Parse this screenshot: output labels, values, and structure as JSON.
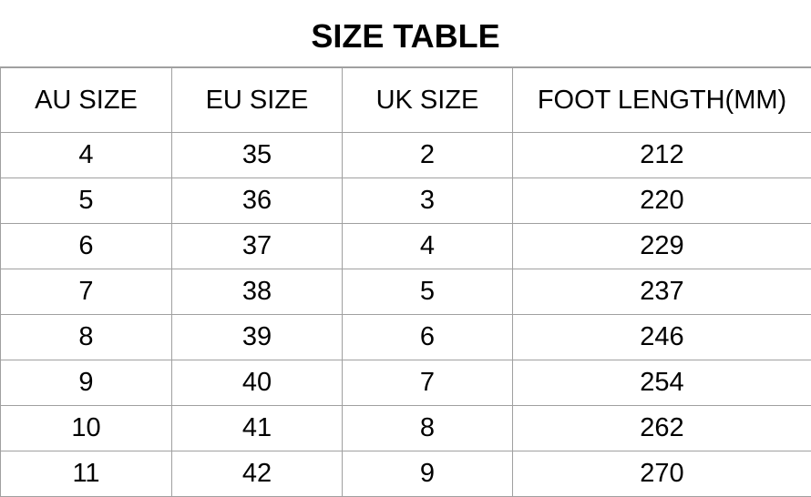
{
  "title": "SIZE TABLE",
  "headers": [
    "AU SIZE",
    "EU SIZE",
    "UK SIZE",
    "FOOT LENGTH(MM)"
  ],
  "rows": [
    [
      "4",
      "35",
      "2",
      "212"
    ],
    [
      "5",
      "36",
      "3",
      "220"
    ],
    [
      "6",
      "37",
      "4",
      "229"
    ],
    [
      "7",
      "38",
      "5",
      "237"
    ],
    [
      "8",
      "39",
      "6",
      "246"
    ],
    [
      "9",
      "40",
      "7",
      "254"
    ],
    [
      "10",
      "41",
      "8",
      "262"
    ],
    [
      "11",
      "42",
      "9",
      "270"
    ]
  ]
}
